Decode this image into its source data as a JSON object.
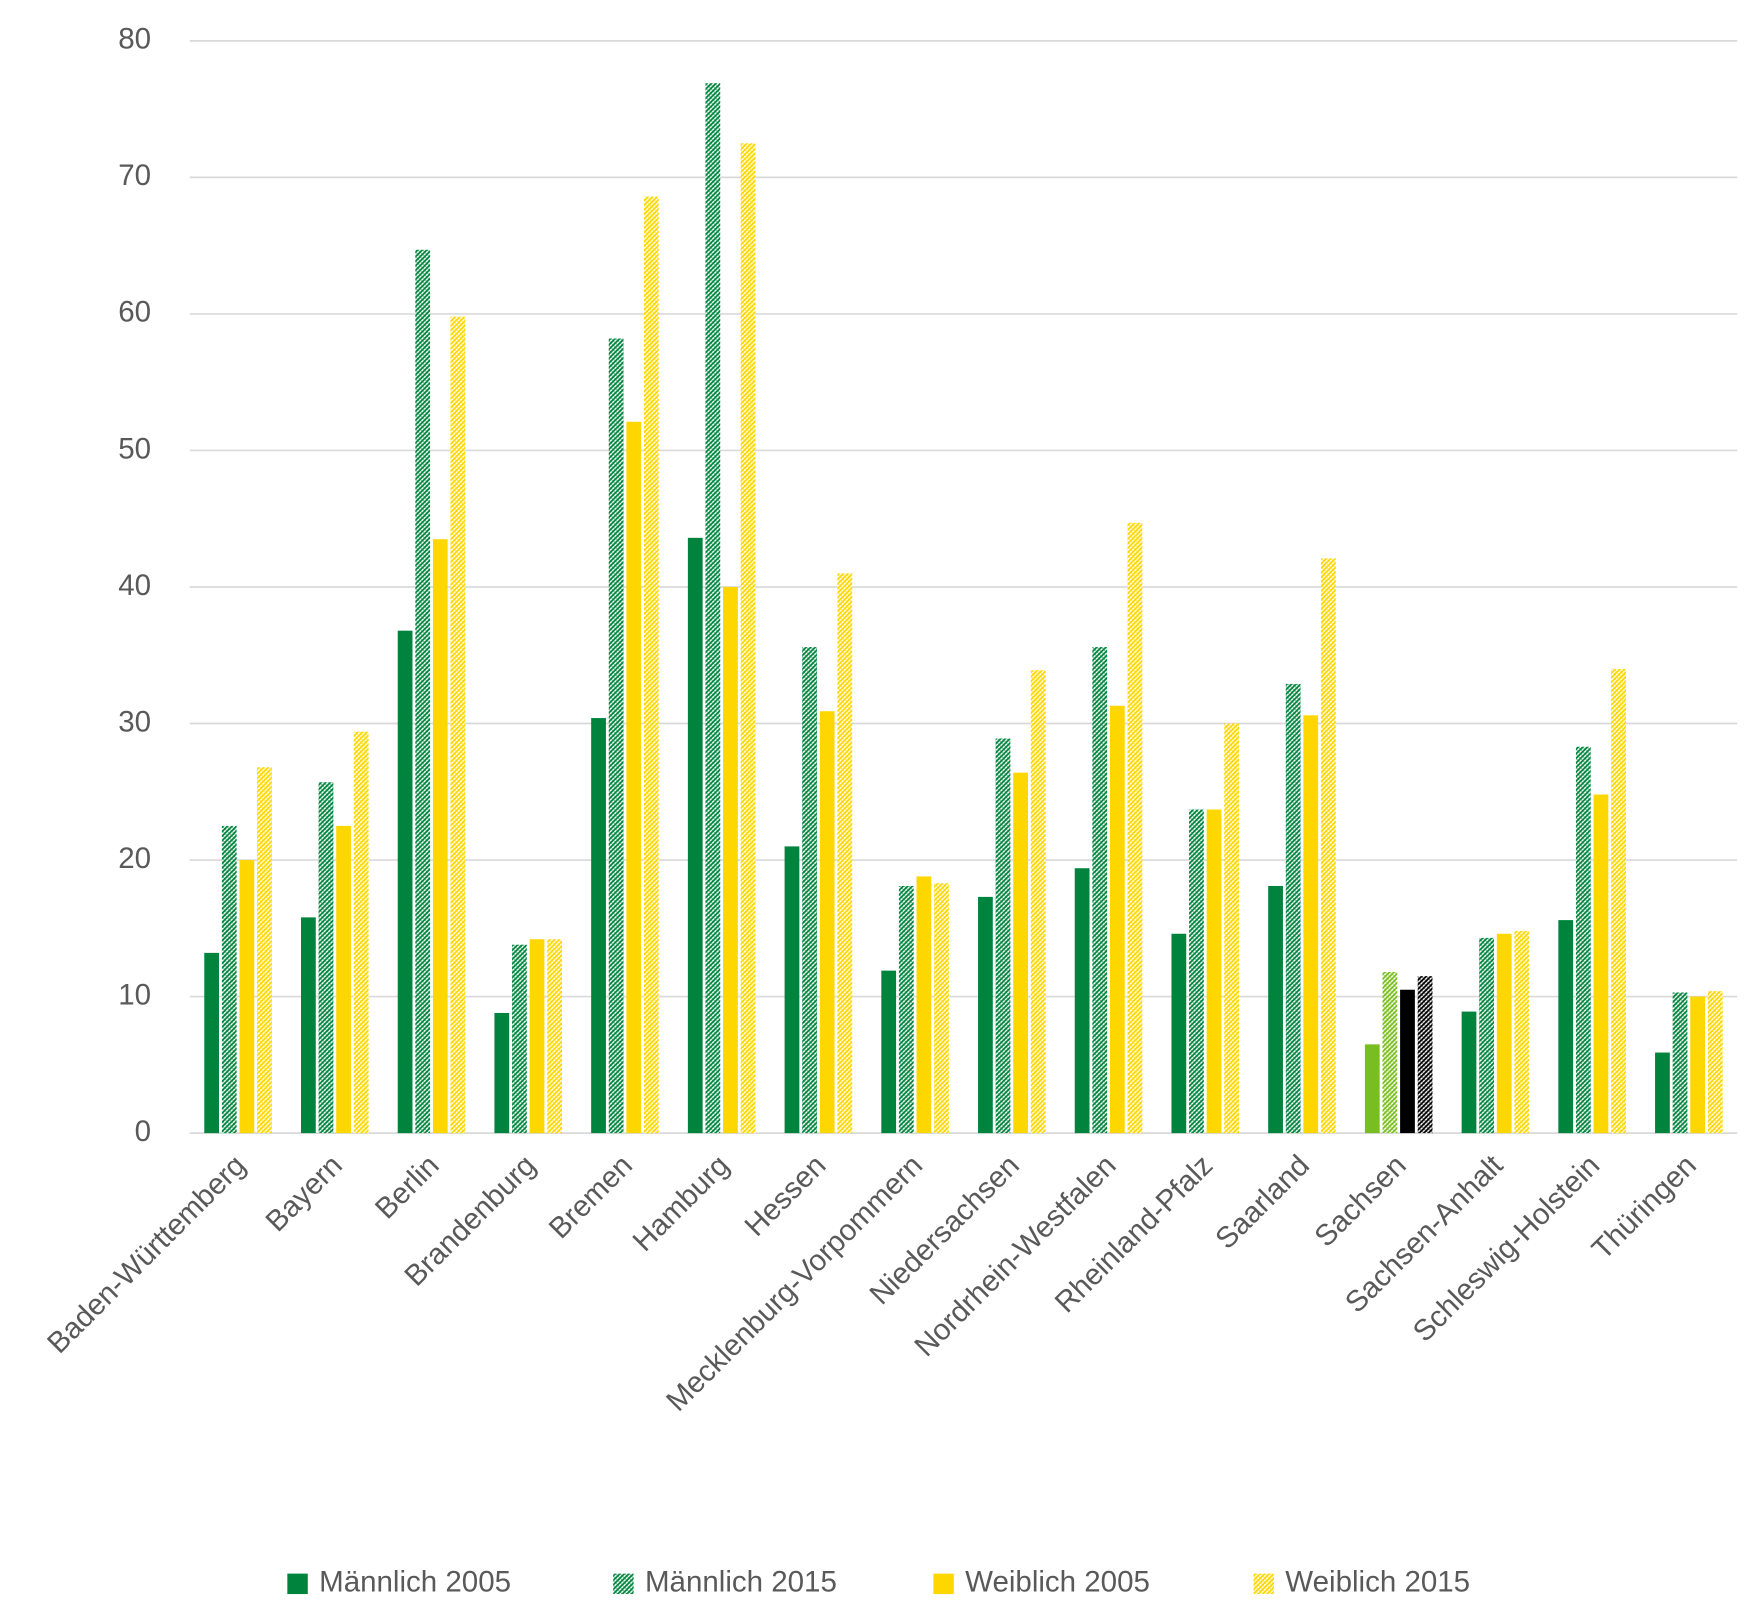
{
  "chart_data": {
    "type": "bar",
    "categories": [
      "Baden-Württemberg",
      "Bayern",
      "Berlin",
      "Brandenburg",
      "Bremen",
      "Hamburg",
      "Hessen",
      "Mecklenburg-Vorpommern",
      "Niedersachsen",
      "Nordrhein-Westfalen",
      "Rheinland-Pfalz",
      "Saarland",
      "Sachsen",
      "Sachsen-Anhalt",
      "Schleswig-Holstein",
      "Thüringen"
    ],
    "series": [
      {
        "name": "Männlich 2005",
        "color": "#00843d",
        "pattern": "solid",
        "colors": [
          "#00843d",
          "#00843d",
          "#00843d",
          "#00843d",
          "#00843d",
          "#00843d",
          "#00843d",
          "#00843d",
          "#00843d",
          "#00843d",
          "#00843d",
          "#00843d",
          "#78be20",
          "#00843d",
          "#00843d",
          "#00843d"
        ],
        "values": [
          13.2,
          15.8,
          36.8,
          8.8,
          30.4,
          43.6,
          21.0,
          11.9,
          17.3,
          19.4,
          14.6,
          18.1,
          6.5,
          8.9,
          15.6,
          5.9
        ]
      },
      {
        "name": "Männlich 2015",
        "color": "#00843d",
        "pattern": "hatch",
        "colors": [
          "#00843d",
          "#00843d",
          "#00843d",
          "#00843d",
          "#00843d",
          "#00843d",
          "#00843d",
          "#00843d",
          "#00843d",
          "#00843d",
          "#00843d",
          "#00843d",
          "#78be20",
          "#00843d",
          "#00843d",
          "#00843d"
        ],
        "values": [
          22.5,
          25.7,
          64.7,
          13.8,
          58.2,
          76.9,
          35.6,
          18.1,
          28.9,
          35.6,
          23.7,
          32.9,
          11.8,
          14.3,
          28.3,
          10.3
        ]
      },
      {
        "name": "Weiblich 2005",
        "color": "#ffd700",
        "pattern": "solid",
        "colors": [
          "#ffd700",
          "#ffd700",
          "#ffd700",
          "#ffd700",
          "#ffd700",
          "#ffd700",
          "#ffd700",
          "#ffd700",
          "#ffd700",
          "#ffd700",
          "#ffd700",
          "#ffd700",
          "#000000",
          "#ffd700",
          "#ffd700",
          "#ffd700"
        ],
        "values": [
          20.0,
          22.5,
          43.5,
          14.2,
          52.1,
          40.0,
          30.9,
          18.8,
          26.4,
          31.3,
          23.7,
          30.6,
          10.5,
          14.6,
          24.8,
          10.0
        ]
      },
      {
        "name": "Weiblich 2015",
        "color": "#ffd700",
        "pattern": "hatch",
        "colors": [
          "#ffd700",
          "#ffd700",
          "#ffd700",
          "#ffd700",
          "#ffd700",
          "#ffd700",
          "#ffd700",
          "#ffd700",
          "#ffd700",
          "#ffd700",
          "#ffd700",
          "#ffd700",
          "#000000",
          "#ffd700",
          "#ffd700",
          "#ffd700"
        ],
        "values": [
          26.8,
          29.4,
          59.8,
          14.2,
          68.6,
          72.5,
          41.0,
          18.3,
          33.9,
          44.7,
          30.0,
          42.1,
          11.5,
          14.8,
          34.0,
          10.4
        ]
      }
    ],
    "ylim": [
      0,
      80
    ],
    "yticks": [
      0,
      10,
      20,
      30,
      40,
      50,
      60,
      70,
      80
    ],
    "grid": true,
    "legend": "bottom"
  }
}
